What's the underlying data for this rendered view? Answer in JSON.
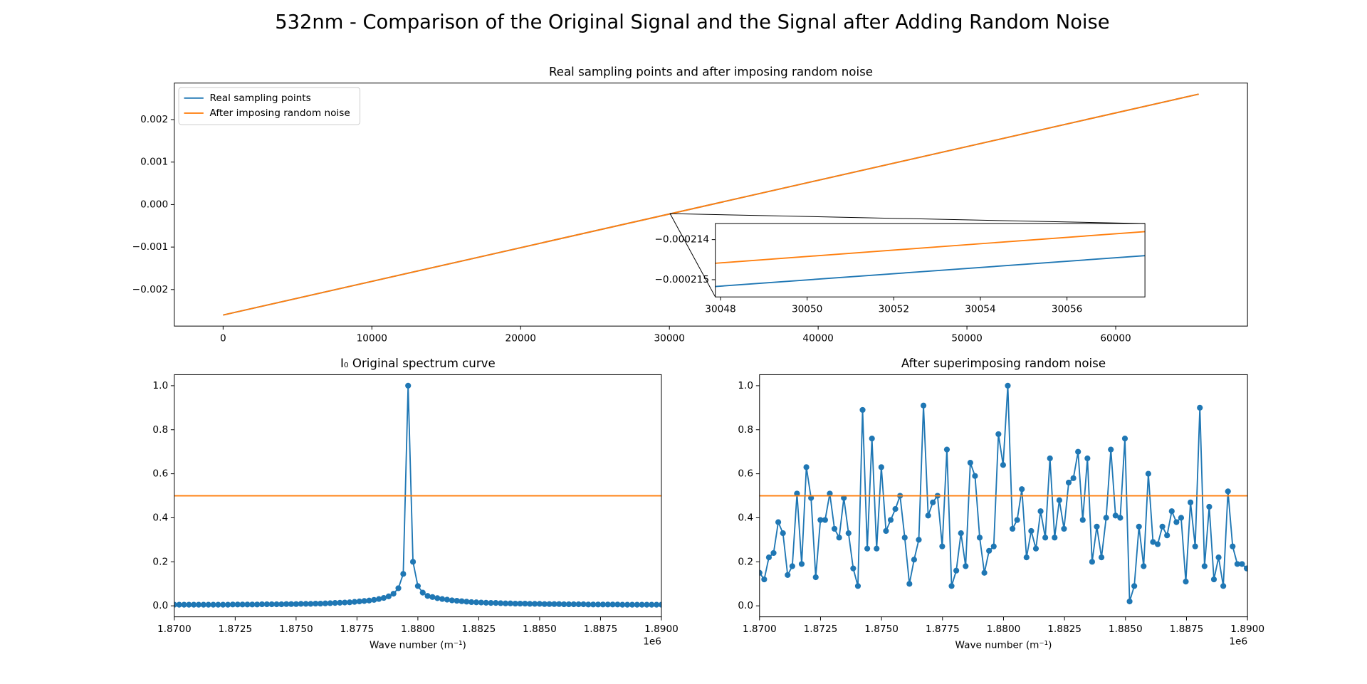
{
  "title": "532nm - Comparison of the Original Signal and the Signal after Adding Random Noise",
  "chart_data": [
    {
      "type": "line",
      "title": "Real sampling points and after imposing random noise",
      "legend": "upper left",
      "x": [
        0,
        65580
      ],
      "series": [
        {
          "name": "Real sampling points",
          "color": "#1f77b4",
          "values": [
            -0.0026,
            0.0026
          ]
        },
        {
          "name": "After imposing random noise",
          "color": "#ff7f0e",
          "values": [
            -0.0026,
            0.0026
          ]
        }
      ],
      "xlim": [
        -3279,
        68859
      ],
      "xticks": [
        0,
        10000,
        20000,
        30000,
        40000,
        50000,
        60000
      ],
      "ylim": [
        -0.00286,
        0.00286
      ],
      "yticks": [
        {
          "value": -0.002,
          "label": "−0.002"
        },
        {
          "value": -0.001,
          "label": "−0.001"
        },
        {
          "value": 0,
          "label": "0.000"
        },
        0.001,
        0.002
      ]
    },
    {
      "type": "line",
      "x": [
        30047.88,
        30057.8
      ],
      "series": [
        {
          "color": "#1f77b4",
          "values": [
            -0.00021517,
            -0.0002144
          ]
        },
        {
          "color": "#ff7f0e",
          "values": [
            -0.00021459,
            -0.0002138
          ]
        }
      ],
      "xlim": [
        30047.88,
        30057.8
      ],
      "xticks": [
        30048,
        30050,
        30052,
        30054,
        30056
      ],
      "ylim": [
        -0.00021543,
        -0.0002136
      ],
      "yticks": [
        {
          "value": -0.000215,
          "label": "−0.000215"
        },
        {
          "value": -0.000214,
          "label": "−0.000214"
        }
      ]
    },
    {
      "type": "line",
      "title": "I₀ Original spectrum curve",
      "x_label": "Wave number (m⁻¹)",
      "x_offset_label": "1e6",
      "markers": true,
      "x": [
        1870000,
        1870200,
        1870400,
        1870600,
        1870800,
        1871000,
        1871200,
        1871400,
        1871600,
        1871800,
        1872000,
        1872200,
        1872400,
        1872600,
        1872800,
        1873000,
        1873200,
        1873400,
        1873600,
        1873800,
        1874000,
        1874200,
        1874400,
        1874600,
        1874800,
        1875000,
        1875200,
        1875400,
        1875600,
        1875800,
        1876000,
        1876200,
        1876400,
        1876600,
        1876800,
        1877000,
        1877200,
        1877400,
        1877600,
        1877800,
        1878000,
        1878200,
        1878400,
        1878600,
        1878800,
        1879000,
        1879200,
        1879400,
        1879600,
        1879800,
        1880000,
        1880200,
        1880400,
        1880600,
        1880800,
        1881000,
        1881200,
        1881400,
        1881600,
        1881800,
        1882000,
        1882200,
        1882400,
        1882600,
        1882800,
        1883000,
        1883200,
        1883400,
        1883600,
        1883800,
        1884000,
        1884200,
        1884400,
        1884600,
        1884800,
        1885000,
        1885200,
        1885400,
        1885600,
        1885800,
        1886000,
        1886200,
        1886400,
        1886600,
        1886800,
        1887000,
        1887200,
        1887400,
        1887600,
        1887800,
        1888000,
        1888200,
        1888400,
        1888600,
        1888800,
        1889000,
        1889200,
        1889400,
        1889600,
        1889800,
        1890000
      ],
      "series": [
        {
          "color": "#1f77b4",
          "values": [
            0.005,
            0.005,
            0.005,
            0.005,
            0.005,
            0.005,
            0.005,
            0.005,
            0.005,
            0.005,
            0.005,
            0.005,
            0.006,
            0.006,
            0.006,
            0.006,
            0.006,
            0.006,
            0.007,
            0.007,
            0.007,
            0.007,
            0.007,
            0.008,
            0.008,
            0.008,
            0.009,
            0.009,
            0.009,
            0.01,
            0.01,
            0.011,
            0.012,
            0.013,
            0.014,
            0.015,
            0.016,
            0.018,
            0.02,
            0.022,
            0.024,
            0.027,
            0.031,
            0.036,
            0.043,
            0.055,
            0.08,
            0.145,
            1.0,
            0.2,
            0.09,
            0.06,
            0.045,
            0.04,
            0.035,
            0.031,
            0.028,
            0.025,
            0.023,
            0.021,
            0.019,
            0.017,
            0.016,
            0.015,
            0.014,
            0.013,
            0.013,
            0.012,
            0.011,
            0.011,
            0.01,
            0.01,
            0.01,
            0.009,
            0.009,
            0.009,
            0.008,
            0.008,
            0.008,
            0.008,
            0.007,
            0.007,
            0.007,
            0.007,
            0.007,
            0.006,
            0.006,
            0.006,
            0.006,
            0.006,
            0.006,
            0.006,
            0.005,
            0.005,
            0.005,
            0.005,
            0.005,
            0.005,
            0.005,
            0.005,
            0.005
          ]
        }
      ],
      "hline": {
        "value": 0.5,
        "color": "#ff7f0e"
      },
      "xlim": [
        1870000,
        1890000
      ],
      "xticks": [
        {
          "value": 1870000,
          "label": "1.8700"
        },
        {
          "value": 1872500,
          "label": "1.8725"
        },
        {
          "value": 1875000,
          "label": "1.8750"
        },
        {
          "value": 1877500,
          "label": "1.8775"
        },
        {
          "value": 1880000,
          "label": "1.8800"
        },
        {
          "value": 1882500,
          "label": "1.8825"
        },
        {
          "value": 1885000,
          "label": "1.8850"
        },
        {
          "value": 1887500,
          "label": "1.8875"
        },
        {
          "value": 1890000,
          "label": "1.8900"
        }
      ],
      "ylim": [
        -0.05,
        1.05
      ],
      "yticks": [
        {
          "value": 0,
          "label": "0.0"
        },
        0.2,
        0.4,
        0.6,
        0.8,
        {
          "value": 1,
          "label": "1.0"
        }
      ]
    },
    {
      "type": "line",
      "title": "After superimposing random noise",
      "x_label": "Wave number (m⁻¹)",
      "x_offset_label": "1e6",
      "markers": true,
      "x": [
        1870000,
        1870192,
        1870384,
        1870576,
        1870768,
        1870960,
        1871152,
        1871344,
        1871536,
        1871728,
        1871920,
        1872112,
        1872304,
        1872496,
        1872688,
        1872880,
        1873072,
        1873264,
        1873456,
        1873648,
        1873840,
        1874032,
        1874224,
        1874416,
        1874608,
        1874800,
        1874992,
        1875184,
        1875376,
        1875568,
        1875760,
        1875952,
        1876144,
        1876336,
        1876528,
        1876720,
        1876912,
        1877104,
        1877296,
        1877488,
        1877680,
        1877872,
        1878064,
        1878256,
        1878448,
        1878640,
        1878832,
        1879024,
        1879216,
        1879408,
        1879600,
        1879792,
        1879984,
        1880176,
        1880368,
        1880560,
        1880752,
        1880944,
        1881136,
        1881328,
        1881520,
        1881712,
        1881904,
        1882096,
        1882288,
        1882480,
        1882672,
        1882864,
        1883056,
        1883248,
        1883440,
        1883632,
        1883824,
        1884016,
        1884208,
        1884400,
        1884592,
        1884784,
        1884976,
        1885168,
        1885360,
        1885552,
        1885744,
        1885936,
        1886128,
        1886320,
        1886512,
        1886704,
        1886896,
        1887088,
        1887280,
        1887472,
        1887664,
        1887856,
        1888048,
        1888240,
        1888432,
        1888624,
        1888816,
        1889008,
        1889200,
        1889392,
        1889584,
        1889776,
        1889968
      ],
      "series": [
        {
          "color": "#1f77b4",
          "values": [
            0.15,
            0.12,
            0.22,
            0.24,
            0.38,
            0.33,
            0.14,
            0.18,
            0.51,
            0.19,
            0.63,
            0.49,
            0.13,
            0.39,
            0.39,
            0.51,
            0.35,
            0.31,
            0.49,
            0.33,
            0.17,
            0.09,
            0.89,
            0.26,
            0.76,
            0.26,
            0.63,
            0.34,
            0.39,
            0.44,
            0.5,
            0.31,
            0.1,
            0.21,
            0.3,
            0.91,
            0.41,
            0.47,
            0.5,
            0.27,
            0.71,
            0.09,
            0.16,
            0.33,
            0.18,
            0.65,
            0.59,
            0.31,
            0.15,
            0.25,
            0.27,
            0.78,
            0.64,
            1.0,
            0.35,
            0.39,
            0.53,
            0.22,
            0.34,
            0.26,
            0.43,
            0.31,
            0.67,
            0.31,
            0.48,
            0.35,
            0.56,
            0.58,
            0.7,
            0.39,
            0.67,
            0.2,
            0.36,
            0.22,
            0.4,
            0.71,
            0.41,
            0.4,
            0.76,
            0.02,
            0.09,
            0.36,
            0.18,
            0.6,
            0.29,
            0.28,
            0.36,
            0.32,
            0.43,
            0.38,
            0.4,
            0.11,
            0.47,
            0.27,
            0.9,
            0.18,
            0.45,
            0.12,
            0.22,
            0.09,
            0.52,
            0.27,
            0.19,
            0.19,
            0.17
          ]
        }
      ],
      "hline": {
        "value": 0.5,
        "color": "#ff7f0e"
      },
      "xlim": [
        1870000,
        1890000
      ],
      "xticks": [
        {
          "value": 1870000,
          "label": "1.8700"
        },
        {
          "value": 1872500,
          "label": "1.8725"
        },
        {
          "value": 1875000,
          "label": "1.8750"
        },
        {
          "value": 1877500,
          "label": "1.8775"
        },
        {
          "value": 1880000,
          "label": "1.8800"
        },
        {
          "value": 1882500,
          "label": "1.8825"
        },
        {
          "value": 1885000,
          "label": "1.8850"
        },
        {
          "value": 1887500,
          "label": "1.8875"
        },
        {
          "value": 1890000,
          "label": "1.8900"
        }
      ],
      "ylim": [
        -0.05,
        1.05
      ],
      "yticks": [
        {
          "value": 0,
          "label": "0.0"
        },
        0.2,
        0.4,
        0.6,
        0.8,
        {
          "value": 1,
          "label": "1.0"
        }
      ]
    }
  ]
}
